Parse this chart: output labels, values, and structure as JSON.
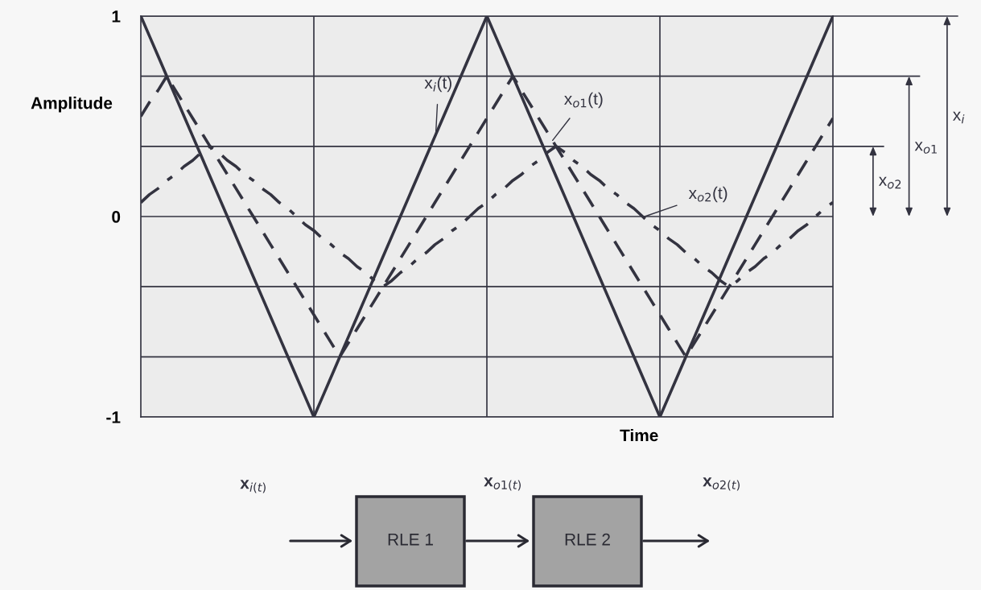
{
  "chart_data": {
    "type": "line",
    "xlabel": "Time",
    "ylabel": "Amplitude",
    "categories": [
      null,
      null,
      null,
      null,
      null,
      null,
      null,
      null,
      null,
      null,
      null,
      null,
      null,
      null,
      null,
      null,
      null,
      null,
      null,
      null,
      null,
      null,
      null,
      null,
      null,
      null,
      null,
      null,
      null,
      null,
      null,
      null,
      null,
      null,
      null,
      null,
      null,
      null,
      null,
      null,
      null,
      null,
      null,
      null,
      null,
      null,
      null,
      null,
      null,
      null,
      null,
      null,
      null,
      null,
      null,
      null,
      null,
      null,
      null,
      null,
      null,
      null,
      null,
      null,
      null,
      null,
      null,
      null,
      null,
      null,
      null,
      null,
      null,
      null,
      null,
      null,
      null,
      null,
      null,
      null,
      null
    ],
    "ylim": [
      -1,
      1
    ],
    "yticks": [
      -1,
      {
        "value": -0.7,
        "label": null
      },
      {
        "value": -0.35,
        "label": null
      },
      0,
      {
        "value": 0.35,
        "label": null
      },
      {
        "value": 0.7,
        "label": null
      },
      1
    ],
    "grid": true,
    "legend": false,
    "series": [
      {
        "color": "#333340",
        "line_style": "solid",
        "values": [
          1,
          0.9,
          0.8,
          0.7,
          0.6,
          0.5,
          0.4,
          0.3,
          0.2,
          0.1,
          0,
          -0.1,
          -0.2,
          -0.3,
          -0.4,
          -0.5,
          -0.6,
          -0.7,
          -0.8,
          -0.9,
          -1,
          -0.9,
          -0.8,
          -0.7,
          -0.6,
          -0.5,
          -0.4,
          -0.3,
          -0.2,
          -0.1,
          0,
          0.1,
          0.2,
          0.3,
          0.4,
          0.5,
          0.6,
          0.7,
          0.8,
          0.9,
          1,
          0.9,
          0.8,
          0.7,
          0.6,
          0.5,
          0.4,
          0.3,
          0.2,
          0.1,
          0,
          -0.1,
          -0.2,
          -0.3,
          -0.4,
          -0.5,
          -0.6,
          -0.7,
          -0.8,
          -0.9,
          -1,
          -0.9,
          -0.8,
          -0.7,
          -0.6,
          -0.5,
          -0.4,
          -0.3,
          -0.2,
          -0.1,
          0,
          0.1,
          0.2,
          0.3,
          0.4,
          0.5,
          0.6,
          0.7,
          0.8,
          0.9,
          1
        ]
      },
      {
        "color": "#333340",
        "line_style": "dashed",
        "values": [
          0.5,
          0.57,
          0.63,
          0.7,
          0.63,
          0.56,
          0.49,
          0.42,
          0.35,
          0.28,
          0.21,
          0.14,
          0.07,
          0,
          -0.07,
          -0.14,
          -0.21,
          -0.28,
          -0.35,
          -0.42,
          -0.49,
          -0.56,
          -0.63,
          -0.7,
          -0.63,
          -0.56,
          -0.49,
          -0.42,
          -0.35,
          -0.28,
          -0.21,
          -0.14,
          -0.07,
          0,
          0.07,
          0.14,
          0.21,
          0.28,
          0.35,
          0.42,
          0.49,
          0.56,
          0.63,
          0.7,
          0.63,
          0.56,
          0.49,
          0.42,
          0.35,
          0.28,
          0.21,
          0.14,
          0.07,
          0,
          -0.07,
          -0.14,
          -0.21,
          -0.28,
          -0.35,
          -0.42,
          -0.49,
          -0.56,
          -0.63,
          -0.7,
          -0.63,
          -0.56,
          -0.49,
          -0.42,
          -0.35,
          -0.28,
          -0.21,
          -0.14,
          -0.07,
          0,
          0.07,
          0.14,
          0.21,
          0.28,
          0.35,
          0.42,
          0.49
        ]
      },
      {
        "color": "#333340",
        "line_style": "dashdot",
        "values": [
          0.07,
          0.11,
          0.14,
          0.18,
          0.21,
          0.25,
          0.28,
          0.32,
          0.35,
          0.32,
          0.28,
          0.25,
          0.21,
          0.18,
          0.14,
          0.11,
          0.07,
          0.04,
          0,
          -0.04,
          -0.07,
          -0.11,
          -0.14,
          -0.18,
          -0.21,
          -0.25,
          -0.28,
          -0.32,
          -0.35,
          -0.32,
          -0.28,
          -0.25,
          -0.21,
          -0.18,
          -0.14,
          -0.11,
          -0.07,
          -0.04,
          0,
          0.04,
          0.07,
          0.11,
          0.14,
          0.18,
          0.21,
          0.25,
          0.28,
          0.32,
          0.35,
          0.32,
          0.28,
          0.25,
          0.21,
          0.18,
          0.14,
          0.11,
          0.07,
          0.04,
          0,
          -0.04,
          -0.07,
          -0.11,
          -0.14,
          -0.18,
          -0.21,
          -0.25,
          -0.28,
          -0.32,
          -0.35,
          -0.32,
          -0.28,
          -0.25,
          -0.21,
          -0.18,
          -0.14,
          -0.11,
          -0.07,
          -0.04,
          0,
          0.04,
          0.07
        ]
      }
    ],
    "annotations": [
      "x$_{i}$(t)",
      "x$_{o1}$(t)",
      "x$_{o2}$(t)",
      "x$_{i}$",
      "x$_{o1}$",
      "x$_{o2}$",
      "x$_{i(t)}$",
      "x$_{o1(t)}$",
      "x$_{o2(t)}$",
      "RLE 1",
      "RLE 2"
    ]
  }
}
